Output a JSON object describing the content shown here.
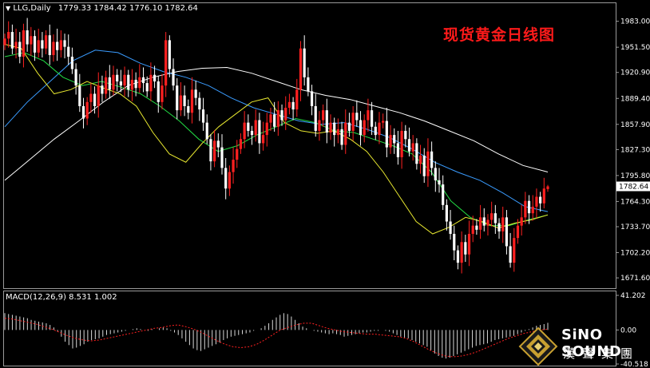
{
  "header": {
    "symbol": "LLG,Daily",
    "ohlc": "1779.33 1784.42 1776.10 1782.64"
  },
  "title_cn": "现货黄金日线图",
  "macd_header": {
    "label": "MACD(12,26,9)",
    "values": "8.531 1.002"
  },
  "logo": {
    "text_en": "SiNO SOUND",
    "text_cn": "漢聲集團"
  },
  "colors": {
    "bull": "#ff2020",
    "bear": "#ffffff",
    "macd_signal": "#ff2020",
    "ma_white": "#ffffff",
    "ma_blue": "#3a9cff",
    "ma_green": "#22dd44",
    "ma_yellow": "#e8e830",
    "logo_gold": "#c8a030"
  },
  "chart_data": [
    {
      "type": "candlestick",
      "title": "现货黄金日线图",
      "price_axis_labels": [
        "1983.00",
        "1951.50",
        "1920.90",
        "1889.40",
        "1857.90",
        "1827.30",
        "1795.80",
        "1764.30",
        "1733.70",
        "1702.20",
        "1671.60"
      ],
      "current_price_label": "1782.64",
      "ylim": [
        1662,
        2003
      ],
      "last_candle": {
        "open": 1779.33,
        "high": 1784.42,
        "low": 1776.1,
        "close": 1782.64
      },
      "closes": [
        1962,
        1970,
        1950,
        1958,
        1940,
        1972,
        1955,
        1965,
        1945,
        1960,
        1950,
        1966,
        1942,
        1958,
        1948,
        1960,
        1952,
        1940,
        1925,
        1905,
        1880,
        1865,
        1885,
        1895,
        1880,
        1905,
        1895,
        1915,
        1900,
        1918,
        1910,
        1905,
        1918,
        1900,
        1912,
        1902,
        1915,
        1908,
        1898,
        1918,
        1910,
        1885,
        1905,
        1960,
        1925,
        1905,
        1875,
        1893,
        1880,
        1872,
        1900,
        1890,
        1876,
        1860,
        1840,
        1813,
        1838,
        1830,
        1805,
        1780,
        1800,
        1815,
        1828,
        1840,
        1860,
        1850,
        1845,
        1863,
        1835,
        1845,
        1860,
        1870,
        1855,
        1875,
        1863,
        1878,
        1885,
        1876,
        1900,
        1950,
        1915,
        1898,
        1880,
        1850,
        1863,
        1875,
        1848,
        1860,
        1845,
        1852,
        1833,
        1860,
        1850,
        1872,
        1863,
        1845,
        1863,
        1875,
        1855,
        1845,
        1860,
        1862,
        1830,
        1845,
        1835,
        1818,
        1850,
        1840,
        1825,
        1835,
        1810,
        1820,
        1795,
        1825,
        1805,
        1790,
        1785,
        1760,
        1740,
        1725,
        1705,
        1690,
        1715,
        1700,
        1725,
        1735,
        1730,
        1745,
        1735,
        1742,
        1750,
        1738,
        1728,
        1745,
        1710,
        1690,
        1720,
        1735,
        1745,
        1765,
        1750,
        1758,
        1770,
        1762,
        1780,
        1782.64
      ],
      "moving_averages": [
        {
          "color": "white",
          "values": [
            1790,
            1815,
            1840,
            1862,
            1885,
            1905,
            1915,
            1922,
            1926,
            1927,
            1920,
            1910,
            1900,
            1893,
            1888,
            1880,
            1872,
            1862,
            1850,
            1838,
            1822,
            1808,
            1800
          ]
        },
        {
          "color": "blue",
          "values": [
            1855,
            1885,
            1910,
            1935,
            1948,
            1945,
            1932,
            1922,
            1915,
            1905,
            1890,
            1878,
            1870,
            1862,
            1858,
            1860,
            1852,
            1842,
            1828,
            1812,
            1800,
            1790,
            1775,
            1758,
            1752
          ]
        },
        {
          "color": "green",
          "values": [
            1940,
            1945,
            1935,
            1915,
            1905,
            1910,
            1903,
            1895,
            1880,
            1862,
            1840,
            1825,
            1832,
            1845,
            1855,
            1865,
            1860,
            1850,
            1848,
            1840,
            1832,
            1822,
            1800,
            1765,
            1745,
            1735,
            1735,
            1742,
            1748
          ]
        },
        {
          "color": "yellow",
          "values": [
            1955,
            1950,
            1920,
            1895,
            1900,
            1910,
            1902,
            1895,
            1880,
            1848,
            1822,
            1812,
            1835,
            1855,
            1870,
            1885,
            1890,
            1860,
            1850,
            1847,
            1850,
            1840,
            1825,
            1800,
            1770,
            1740,
            1725,
            1733,
            1745,
            1740,
            1732,
            1738,
            1742,
            1748
          ]
        }
      ]
    },
    {
      "type": "bar",
      "title": "MACD(12,26,9)",
      "axis_labels": [
        "41.202",
        "0.00",
        "-40.518"
      ],
      "ylim": [
        -40.518,
        41.202
      ],
      "values": [
        20,
        19,
        18,
        17,
        16,
        15,
        14,
        12,
        11,
        10,
        9,
        8,
        6,
        3,
        -2,
        -8,
        -14,
        -18,
        -22,
        -21,
        -19,
        -17,
        -14,
        -12,
        -11,
        -10,
        -8,
        -6,
        -5,
        -4,
        -3,
        -2,
        -1,
        0,
        1,
        2,
        1,
        0,
        -1,
        1,
        0,
        2,
        3,
        2,
        -1,
        -3,
        -6,
        -10,
        -14,
        -18,
        -22,
        -24,
        -25,
        -23,
        -21,
        -19,
        -17,
        -15,
        -12,
        -10,
        -8,
        -7,
        -6,
        -5,
        -4,
        -3,
        -1,
        0,
        2,
        5,
        8,
        12,
        15,
        18,
        20,
        19,
        16,
        12,
        8,
        4,
        2,
        0,
        -1,
        -2,
        -3,
        -4,
        -5,
        -4,
        -5,
        -6,
        -8,
        -7,
        -6,
        -5,
        -4,
        -3,
        -3,
        -2,
        -1,
        -1,
        0,
        -1,
        -2,
        -4,
        -6,
        -8,
        -9,
        -10,
        -12,
        -14,
        -16,
        -18,
        -20,
        -24,
        -28,
        -31,
        -33,
        -34,
        -33,
        -31,
        -29,
        -27,
        -25,
        -23,
        -21,
        -19,
        -18,
        -17,
        -16,
        -14,
        -12,
        -11,
        -10,
        -9,
        -8,
        -7,
        -5,
        -3,
        -1,
        1,
        3,
        5,
        6,
        7,
        8.531
      ],
      "signal": [
        14,
        13,
        11,
        9,
        7,
        4,
        1,
        -3,
        -7,
        -10,
        -12,
        -13,
        -12,
        -10,
        -8,
        -6,
        -4,
        -2,
        0,
        2,
        3,
        5,
        6,
        4,
        1,
        -3,
        -8,
        -13,
        -17,
        -20,
        -21,
        -20,
        -17,
        -12,
        -6,
        0,
        3,
        6,
        8,
        8,
        5,
        2,
        0,
        -2,
        -3,
        -4,
        -5,
        -5,
        -6,
        -7,
        -8,
        -10,
        -14,
        -19,
        -24,
        -28,
        -31,
        -32,
        -31,
        -29,
        -26,
        -22,
        -18,
        -14,
        -10,
        -7,
        -4,
        -2,
        0,
        1
      ]
    }
  ]
}
